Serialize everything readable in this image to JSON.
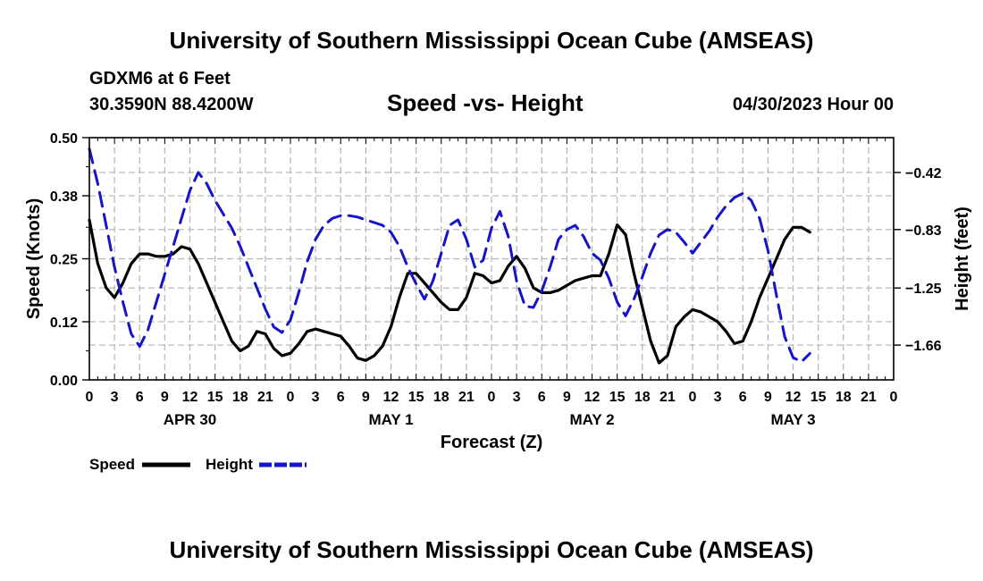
{
  "header": {
    "title": "University of Southern Mississippi Ocean Cube (AMSEAS)",
    "station": "GDXM6 at 6 Feet",
    "location": "30.3590N  88.4200W",
    "subtitle": "Speed -vs- Height",
    "datetime": "04/30/2023 Hour 00"
  },
  "footer": {
    "title": "University of Southern Mississippi Ocean Cube (AMSEAS)"
  },
  "colors": {
    "speed": "#000000",
    "height": "#1414c8",
    "grid": "#b4b4b4"
  },
  "chart_data": {
    "type": "line",
    "title": "Speed -vs- Height",
    "xlabel": "Forecast (Z)",
    "ylabel": "Speed (Knots)",
    "y2label": "Height (feet)",
    "x_range": [
      0,
      96
    ],
    "ylim": [
      0,
      0.5
    ],
    "y_ticks": [
      "0.00",
      "0.12",
      "0.25",
      "0.38",
      "0.50"
    ],
    "y2lim": [
      -1.91,
      -0.17
    ],
    "y2_ticks": [
      "-0.42",
      "-0.83",
      "-1.25",
      "-1.66"
    ],
    "x_tick_labels": [
      "0",
      "3",
      "6",
      "9",
      "12",
      "15",
      "18",
      "21",
      "0",
      "3",
      "6",
      "9",
      "12",
      "15",
      "18",
      "21",
      "0",
      "3",
      "6",
      "9",
      "12",
      "15",
      "18",
      "21",
      "0",
      "3",
      "6",
      "9",
      "12",
      "15",
      "18",
      "21",
      "0"
    ],
    "day_labels": [
      {
        "label": "APR 30",
        "hour": 12
      },
      {
        "label": "MAY 1",
        "hour": 36
      },
      {
        "label": "MAY 2",
        "hour": 60
      },
      {
        "label": "MAY 3",
        "hour": 84
      }
    ],
    "grid": true,
    "series": [
      {
        "name": "Speed",
        "axis": "left",
        "points": [
          [
            0,
            0.33
          ],
          [
            1,
            0.24
          ],
          [
            2,
            0.19
          ],
          [
            3,
            0.17
          ],
          [
            4,
            0.2
          ],
          [
            5,
            0.24
          ],
          [
            6,
            0.26
          ],
          [
            7,
            0.26
          ],
          [
            8,
            0.255
          ],
          [
            9,
            0.255
          ],
          [
            10,
            0.26
          ],
          [
            11,
            0.275
          ],
          [
            12,
            0.27
          ],
          [
            13,
            0.24
          ],
          [
            14,
            0.2
          ],
          [
            15,
            0.16
          ],
          [
            16,
            0.12
          ],
          [
            17,
            0.08
          ],
          [
            18,
            0.06
          ],
          [
            19,
            0.07
          ],
          [
            20,
            0.1
          ],
          [
            21,
            0.095
          ],
          [
            22,
            0.065
          ],
          [
            23,
            0.05
          ],
          [
            24,
            0.055
          ],
          [
            25,
            0.075
          ],
          [
            26,
            0.1
          ],
          [
            27,
            0.105
          ],
          [
            28,
            0.1
          ],
          [
            29,
            0.095
          ],
          [
            30,
            0.09
          ],
          [
            31,
            0.07
          ],
          [
            32,
            0.045
          ],
          [
            33,
            0.04
          ],
          [
            34,
            0.05
          ],
          [
            35,
            0.07
          ],
          [
            36,
            0.11
          ],
          [
            37,
            0.17
          ],
          [
            38,
            0.22
          ],
          [
            39,
            0.22
          ],
          [
            40,
            0.2
          ],
          [
            41,
            0.18
          ],
          [
            42,
            0.16
          ],
          [
            43,
            0.145
          ],
          [
            44,
            0.145
          ],
          [
            45,
            0.17
          ],
          [
            46,
            0.22
          ],
          [
            47,
            0.215
          ],
          [
            48,
            0.2
          ],
          [
            49,
            0.205
          ],
          [
            50,
            0.235
          ],
          [
            51,
            0.255
          ],
          [
            52,
            0.23
          ],
          [
            53,
            0.19
          ],
          [
            54,
            0.18
          ],
          [
            55,
            0.18
          ],
          [
            56,
            0.185
          ],
          [
            57,
            0.195
          ],
          [
            58,
            0.205
          ],
          [
            59,
            0.21
          ],
          [
            60,
            0.215
          ],
          [
            61,
            0.215
          ],
          [
            62,
            0.26
          ],
          [
            63,
            0.32
          ],
          [
            64,
            0.3
          ],
          [
            65,
            0.22
          ],
          [
            66,
            0.15
          ],
          [
            67,
            0.08
          ],
          [
            68,
            0.035
          ],
          [
            69,
            0.05
          ],
          [
            70,
            0.11
          ],
          [
            71,
            0.13
          ],
          [
            72,
            0.145
          ],
          [
            73,
            0.14
          ],
          [
            74,
            0.13
          ],
          [
            75,
            0.12
          ],
          [
            76,
            0.1
          ],
          [
            77,
            0.075
          ],
          [
            78,
            0.08
          ],
          [
            79,
            0.12
          ],
          [
            80,
            0.17
          ],
          [
            81,
            0.21
          ],
          [
            82,
            0.25
          ],
          [
            83,
            0.29
          ],
          [
            84,
            0.315
          ],
          [
            85,
            0.315
          ],
          [
            86,
            0.305
          ]
        ]
      },
      {
        "name": "Height",
        "axis": "right",
        "points": [
          [
            0,
            -0.25
          ],
          [
            1,
            -0.5
          ],
          [
            2,
            -0.8
          ],
          [
            3,
            -1.1
          ],
          [
            4,
            -1.35
          ],
          [
            5,
            -1.58
          ],
          [
            6,
            -1.67
          ],
          [
            7,
            -1.55
          ],
          [
            8,
            -1.35
          ],
          [
            9,
            -1.15
          ],
          [
            10,
            -0.95
          ],
          [
            11,
            -0.75
          ],
          [
            12,
            -0.55
          ],
          [
            13,
            -0.42
          ],
          [
            14,
            -0.5
          ],
          [
            15,
            -0.62
          ],
          [
            16,
            -0.72
          ],
          [
            17,
            -0.82
          ],
          [
            18,
            -0.95
          ],
          [
            19,
            -1.1
          ],
          [
            20,
            -1.25
          ],
          [
            21,
            -1.4
          ],
          [
            22,
            -1.53
          ],
          [
            23,
            -1.57
          ],
          [
            24,
            -1.48
          ],
          [
            25,
            -1.28
          ],
          [
            26,
            -1.06
          ],
          [
            27,
            -0.9
          ],
          [
            28,
            -0.8
          ],
          [
            29,
            -0.75
          ],
          [
            30,
            -0.73
          ],
          [
            31,
            -0.73
          ],
          [
            32,
            -0.74
          ],
          [
            33,
            -0.76
          ],
          [
            34,
            -0.78
          ],
          [
            35,
            -0.8
          ],
          [
            36,
            -0.85
          ],
          [
            37,
            -0.95
          ],
          [
            38,
            -1.1
          ],
          [
            39,
            -1.22
          ],
          [
            40,
            -1.33
          ],
          [
            41,
            -1.2
          ],
          [
            42,
            -1.0
          ],
          [
            43,
            -0.8
          ],
          [
            44,
            -0.76
          ],
          [
            45,
            -0.9
          ],
          [
            46,
            -1.1
          ],
          [
            47,
            -1.05
          ],
          [
            48,
            -0.82
          ],
          [
            49,
            -0.7
          ],
          [
            50,
            -0.88
          ],
          [
            51,
            -1.2
          ],
          [
            52,
            -1.38
          ],
          [
            53,
            -1.39
          ],
          [
            54,
            -1.27
          ],
          [
            55,
            -1.1
          ],
          [
            56,
            -0.9
          ],
          [
            57,
            -0.83
          ],
          [
            58,
            -0.8
          ],
          [
            59,
            -0.88
          ],
          [
            60,
            -1.0
          ],
          [
            61,
            -1.05
          ],
          [
            62,
            -1.18
          ],
          [
            63,
            -1.35
          ],
          [
            64,
            -1.45
          ],
          [
            65,
            -1.33
          ],
          [
            66,
            -1.17
          ],
          [
            67,
            -1.0
          ],
          [
            68,
            -0.87
          ],
          [
            69,
            -0.83
          ],
          [
            70,
            -0.85
          ],
          [
            71,
            -0.92
          ],
          [
            72,
            -1.0
          ],
          [
            73,
            -0.92
          ],
          [
            74,
            -0.84
          ],
          [
            75,
            -0.74
          ],
          [
            76,
            -0.66
          ],
          [
            77,
            -0.6
          ],
          [
            78,
            -0.57
          ],
          [
            79,
            -0.62
          ],
          [
            80,
            -0.75
          ],
          [
            81,
            -0.98
          ],
          [
            82,
            -1.3
          ],
          [
            83,
            -1.6
          ],
          [
            84,
            -1.75
          ],
          [
            85,
            -1.78
          ],
          [
            86,
            -1.72
          ]
        ]
      }
    ]
  },
  "legend": {
    "speed": "Speed",
    "height": "Height"
  }
}
